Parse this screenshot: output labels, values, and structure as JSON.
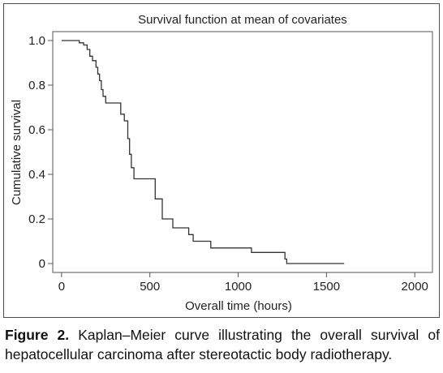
{
  "caption": {
    "label": "Figure 2.",
    "text": "Kaplan–Meier curve illustrating the overall survival of hepatocellular carcinoma after stereotactic body radiotherapy."
  },
  "chart_data": {
    "type": "line",
    "step": true,
    "title": "Survival function at mean of covariates",
    "xlabel": "Overall time (hours)",
    "ylabel": "Cumulative survival",
    "xlim": [
      -50,
      2100
    ],
    "ylim": [
      -0.04,
      1.04
    ],
    "xticks": [
      0,
      500,
      1000,
      1500,
      2000
    ],
    "xtick_labels": [
      "0",
      "500",
      "1000",
      "1500",
      "2000"
    ],
    "yticks": [
      0,
      0.2,
      0.4,
      0.6,
      0.8,
      1.0
    ],
    "ytick_labels": [
      "0",
      "0.2",
      "0.4",
      "0.6",
      "0.8",
      "1.0"
    ],
    "grid": false,
    "line_color": "#333333",
    "series": [
      {
        "x": [
          0,
          100,
          125,
          145,
          160,
          175,
          195,
          205,
          215,
          225,
          235,
          250,
          270,
          335,
          355,
          375,
          385,
          395,
          400,
          410,
          440,
          530,
          545,
          570,
          630,
          720,
          745,
          845,
          1075,
          1265,
          1275,
          1600
        ],
        "y": [
          1.0,
          0.99,
          0.98,
          0.96,
          0.93,
          0.91,
          0.88,
          0.85,
          0.82,
          0.78,
          0.75,
          0.72,
          0.72,
          0.67,
          0.64,
          0.56,
          0.49,
          0.43,
          0.43,
          0.38,
          0.38,
          0.29,
          0.29,
          0.2,
          0.16,
          0.13,
          0.1,
          0.07,
          0.05,
          0.02,
          0.0,
          0.0
        ]
      }
    ]
  }
}
